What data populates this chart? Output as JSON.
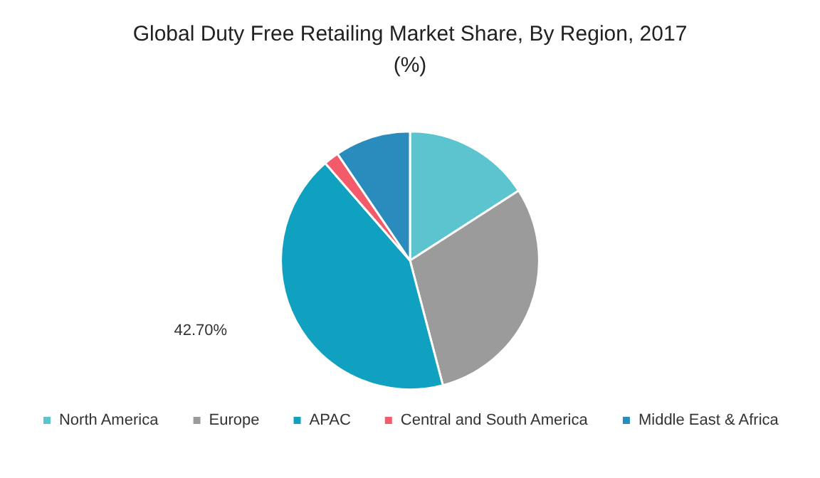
{
  "chart_data": {
    "type": "pie",
    "title": "Global Duty Free Retailing Market Share, By Region, 2017\n(%)",
    "categories": [
      "North America",
      "Europe",
      "APAC",
      "Central and South America",
      "Middle East & Africa"
    ],
    "values": [
      15.9,
      30.0,
      42.7,
      1.9,
      9.5
    ],
    "colors": [
      "#5bc4cf",
      "#9b9b9b",
      "#10a0c0",
      "#f45b6a",
      "#2a8cbc"
    ],
    "value_labels": [
      null,
      null,
      "42.70%",
      null,
      null
    ],
    "legend": "bottom"
  }
}
